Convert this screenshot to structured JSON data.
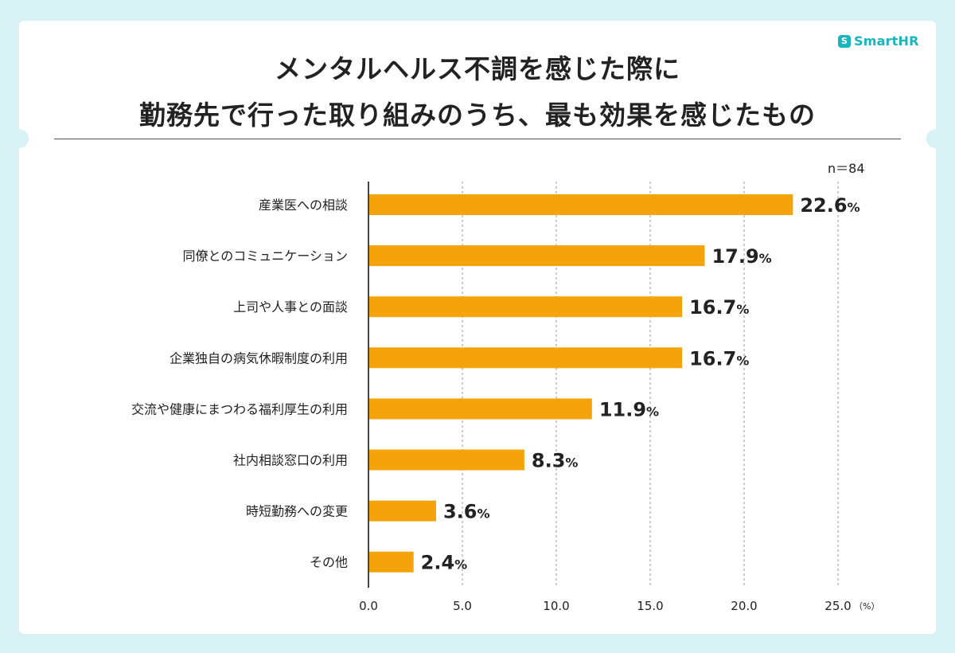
{
  "brand": {
    "logo_mark": "S",
    "logo_text": "SmartHR",
    "accent_color": "#18b5bd"
  },
  "header": {
    "title_line1": "メンタルヘルス不調を感じた際に",
    "title_line2": "勤務先で行った取り組みのうち、最も効果を感じたもの"
  },
  "sample": {
    "n_label": "n＝84"
  },
  "chart_data": {
    "type": "bar",
    "orientation": "horizontal",
    "bar_color": "#f5a30a",
    "categories": [
      "産業医への相談",
      "同僚とのコミュニケーション",
      "上司や人事との面談",
      "企業独自の病気休暇制度の利用",
      "交流や健康にまつわる福利厚生の利用",
      "社内相談窓口の利用",
      "時短勤務への変更",
      "その他"
    ],
    "values": [
      22.6,
      17.9,
      16.7,
      16.7,
      11.9,
      8.3,
      3.6,
      2.4
    ],
    "value_labels": [
      "22.6",
      "17.9",
      "16.7",
      "16.7",
      "11.9",
      "8.3",
      "3.6",
      "2.4"
    ],
    "value_suffix": "%",
    "xlim": [
      0,
      25
    ],
    "xticks": [
      0,
      5,
      10,
      15,
      20,
      25
    ],
    "xtick_labels": [
      "0.0",
      "5.0",
      "10.0",
      "15.0",
      "20.0",
      "25.0"
    ],
    "x_unit": "（%）",
    "grid": "dashed-vertical"
  }
}
